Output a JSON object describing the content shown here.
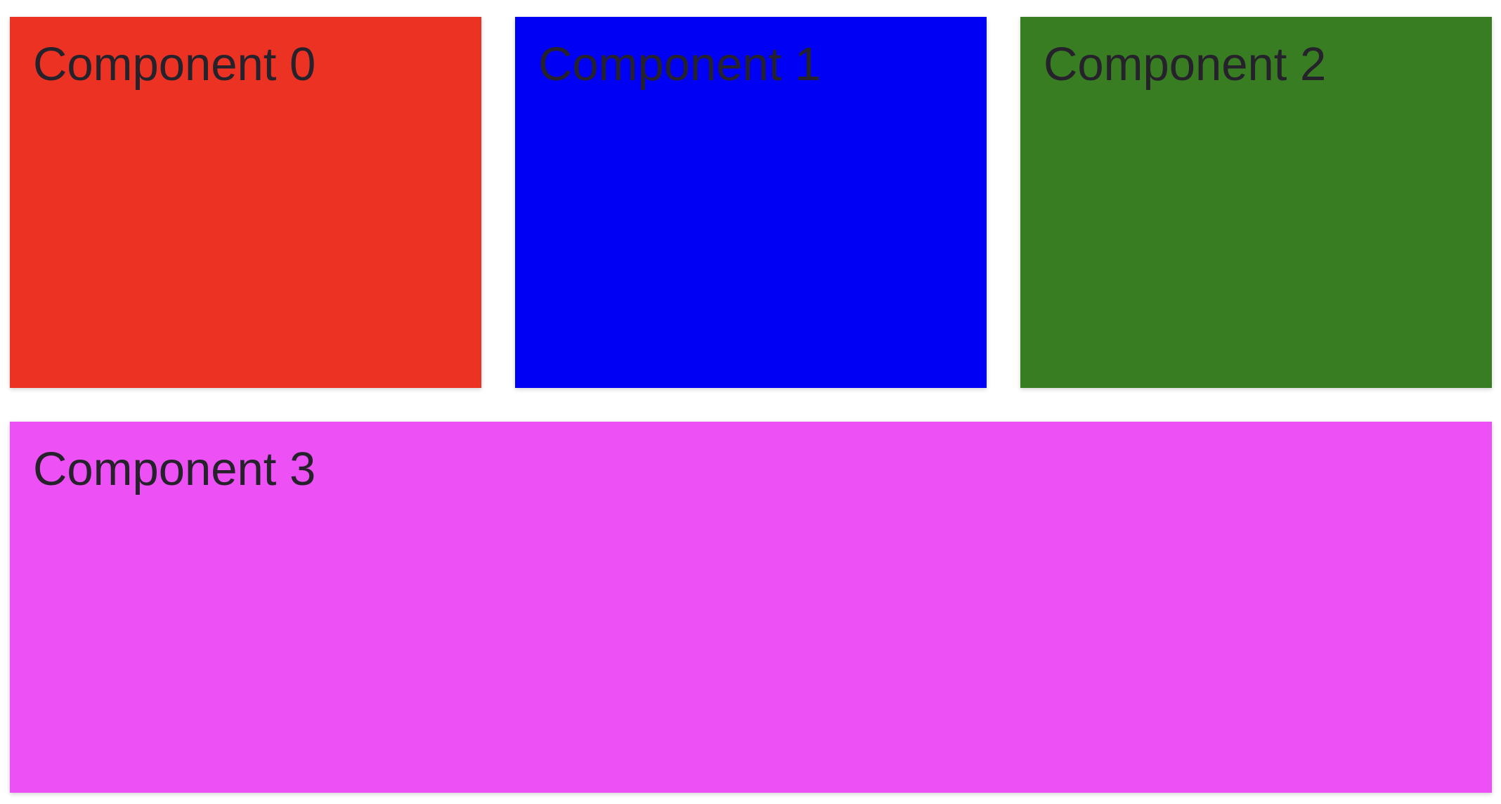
{
  "components": [
    {
      "title": "Component 0",
      "color": "#ec3323"
    },
    {
      "title": "Component 1",
      "color": "#0000f5"
    },
    {
      "title": "Component 2",
      "color": "#387d22"
    },
    {
      "title": "Component 3",
      "color": "#ed51f5"
    }
  ]
}
